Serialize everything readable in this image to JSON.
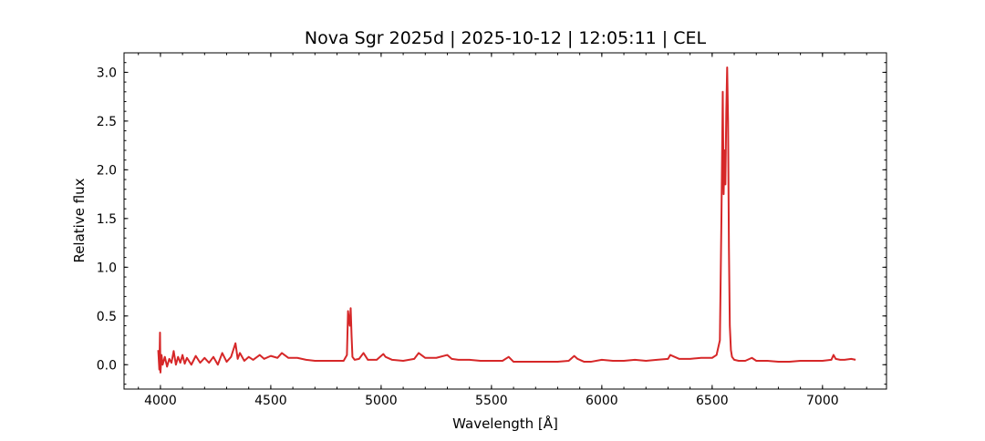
{
  "chart_data": {
    "type": "line",
    "title": "Nova Sgr 2025d | 2025-10-12 | 12:05:11 | CEL",
    "xlabel": "Wavelength [Å]",
    "ylabel": "Relative flux",
    "x": [
      3990,
      3995,
      3998,
      4000,
      4005,
      4010,
      4020,
      4030,
      4040,
      4050,
      4060,
      4070,
      4080,
      4090,
      4100,
      4110,
      4120,
      4140,
      4160,
      4180,
      4200,
      4220,
      4240,
      4260,
      4280,
      4300,
      4320,
      4330,
      4340,
      4350,
      4360,
      4380,
      4400,
      4420,
      4450,
      4470,
      4500,
      4530,
      4550,
      4580,
      4620,
      4660,
      4700,
      4750,
      4800,
      4830,
      4845,
      4850,
      4855,
      4858,
      4862,
      4866,
      4870,
      4880,
      4900,
      4920,
      4940,
      4980,
      5010,
      5020,
      5050,
      5100,
      5150,
      5170,
      5200,
      5250,
      5300,
      5320,
      5350,
      5400,
      5450,
      5500,
      5550,
      5578,
      5600,
      5650,
      5700,
      5750,
      5800,
      5850,
      5875,
      5890,
      5920,
      5950,
      6000,
      6050,
      6100,
      6150,
      6200,
      6250,
      6300,
      6310,
      6350,
      6400,
      6450,
      6500,
      6520,
      6535,
      6542,
      6548,
      6552,
      6556,
      6560,
      6564,
      6568,
      6572,
      6576,
      6580,
      6585,
      6590,
      6600,
      6620,
      6650,
      6680,
      6700,
      6750,
      6800,
      6850,
      6900,
      6950,
      7000,
      7040,
      7050,
      7060,
      7080,
      7100,
      7130,
      7150
    ],
    "series": [
      {
        "color": "#d62728",
        "values": [
          0.15,
          -0.05,
          0.33,
          -0.08,
          0.1,
          0.0,
          0.08,
          -0.02,
          0.06,
          0.02,
          0.14,
          0.0,
          0.08,
          0.02,
          0.1,
          0.01,
          0.07,
          0.0,
          0.09,
          0.02,
          0.07,
          0.02,
          0.08,
          0.0,
          0.12,
          0.03,
          0.08,
          0.15,
          0.22,
          0.06,
          0.12,
          0.04,
          0.08,
          0.05,
          0.1,
          0.06,
          0.09,
          0.07,
          0.12,
          0.07,
          0.07,
          0.05,
          0.04,
          0.04,
          0.04,
          0.04,
          0.1,
          0.55,
          0.45,
          0.4,
          0.58,
          0.3,
          0.08,
          0.05,
          0.06,
          0.12,
          0.05,
          0.05,
          0.11,
          0.08,
          0.05,
          0.04,
          0.06,
          0.12,
          0.07,
          0.07,
          0.1,
          0.06,
          0.05,
          0.05,
          0.04,
          0.04,
          0.04,
          0.08,
          0.03,
          0.03,
          0.03,
          0.03,
          0.03,
          0.04,
          0.09,
          0.06,
          0.03,
          0.03,
          0.05,
          0.04,
          0.04,
          0.05,
          0.04,
          0.05,
          0.06,
          0.1,
          0.06,
          0.06,
          0.07,
          0.07,
          0.1,
          0.25,
          1.5,
          2.8,
          1.75,
          2.2,
          1.85,
          2.6,
          3.05,
          2.5,
          1.2,
          0.4,
          0.15,
          0.08,
          0.05,
          0.04,
          0.04,
          0.07,
          0.04,
          0.04,
          0.03,
          0.03,
          0.04,
          0.04,
          0.04,
          0.05,
          0.1,
          0.06,
          0.05,
          0.05,
          0.06,
          0.05
        ]
      }
    ],
    "xlim": [
      3835,
      7290
    ],
    "ylim": [
      -0.25,
      3.2
    ],
    "xticks": [
      4000,
      4500,
      5000,
      5500,
      6000,
      6500,
      7000
    ],
    "yticks": [
      {
        "value": 0,
        "label": "0.0"
      },
      0.5,
      {
        "value": 1,
        "label": "1.0"
      },
      1.5,
      {
        "value": 2,
        "label": "2.0"
      },
      2.5,
      {
        "value": 3,
        "label": "3.0"
      }
    ],
    "minor_subdivisions": 5
  }
}
